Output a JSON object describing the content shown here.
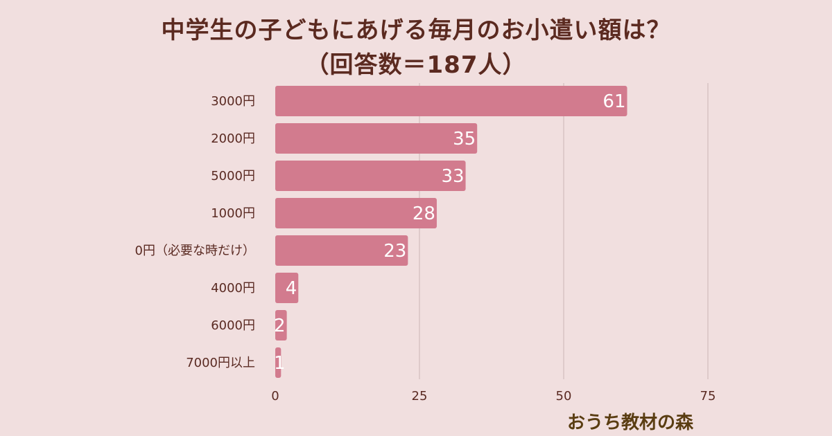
{
  "chart_data": {
    "type": "bar",
    "orientation": "horizontal",
    "title": "中学生の子どもにあげる毎月のお小遣い額は？",
    "subtitle": "（回答数＝187人）",
    "categories": [
      "3000円",
      "2000円",
      "5000円",
      "1000円",
      "0円（必要な時だけ）",
      "4000円",
      "6000円",
      "7000円以上"
    ],
    "values": [
      61,
      35,
      33,
      28,
      23,
      4,
      2,
      1
    ],
    "xlim": [
      0,
      75
    ],
    "xticks": [
      "0",
      "25",
      "50",
      "75"
    ],
    "grid": true,
    "bar_color": "#d27b8e",
    "grid_color": "#d8c4c4"
  },
  "brand": "おうち教材の森"
}
